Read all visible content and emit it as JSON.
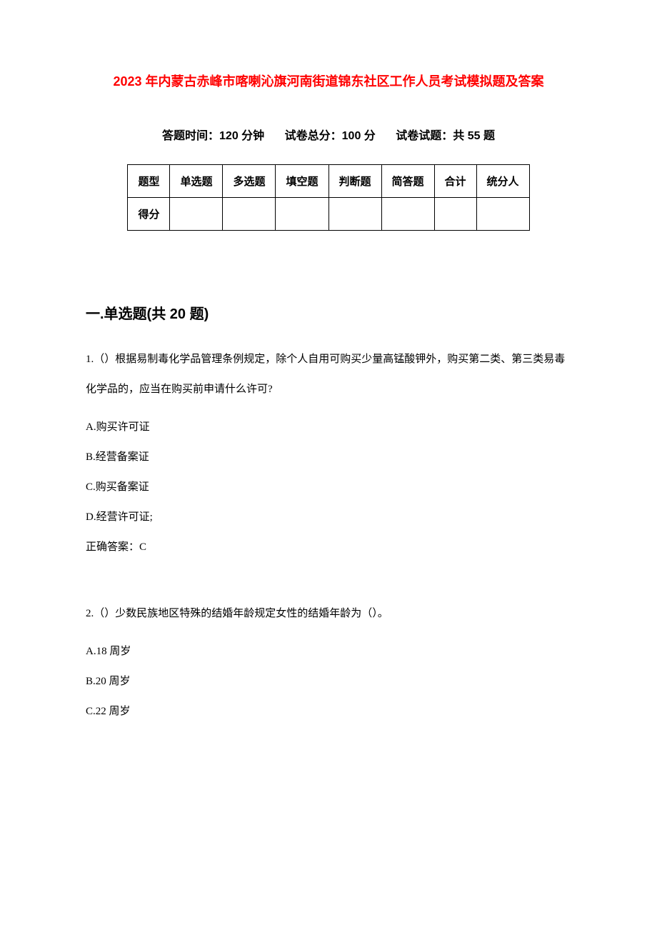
{
  "document": {
    "title": "2023 年内蒙古赤峰市喀喇沁旗河南街道锦东社区工作人员考试模拟题及答案",
    "title_color": "#ff0000",
    "background_color": "#ffffff",
    "text_color": "#000000",
    "subtitle": {
      "time_label": "答题时间：120 分钟",
      "total_label": "试卷总分：100 分",
      "count_label": "试卷试题：共 55 题"
    },
    "score_table": {
      "border_color": "#000000",
      "header_row_label": "题型",
      "score_row_label": "得分",
      "columns": [
        "单选题",
        "多选题",
        "填空题",
        "判断题",
        "简答题",
        "合计",
        "统分人"
      ]
    },
    "section": {
      "heading": "一.单选题(共 20 题)",
      "questions": [
        {
          "number": "1.",
          "text": "（）根据易制毒化学品管理条例规定，除个人自用可购买少量高锰酸钾外，购买第二类、第三类易毒化学品的，应当在购买前申请什么许可?",
          "options": [
            "A.购买许可证",
            "B.经营备案证",
            "C.购买备案证",
            "D.经营许可证;"
          ],
          "answer": "正确答案：C"
        },
        {
          "number": "2.",
          "text": "（）少数民族地区特殊的结婚年龄规定女性的结婚年龄为（）。",
          "options": [
            "A.18 周岁",
            "B.20 周岁",
            "C.22 周岁"
          ],
          "answer": ""
        }
      ]
    }
  }
}
